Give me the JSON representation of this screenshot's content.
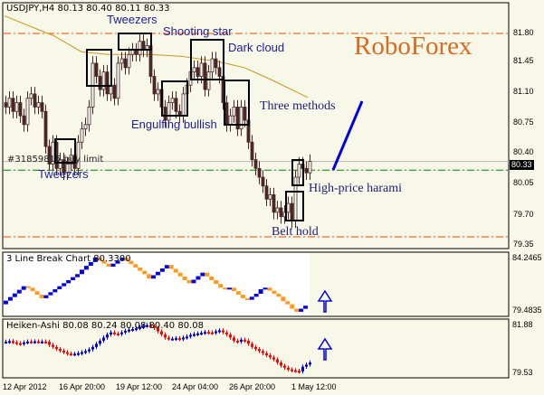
{
  "chart_data": [
    {
      "type": "candlestick",
      "header": "USDJPY,H4  80.13 80.40 80.11 80.33",
      "brand": "RoboForex",
      "ylim": [
        79.3,
        82.1
      ],
      "yticks": [
        "81.80",
        "81.45",
        "81.10",
        "80.75",
        "80.40",
        "80.05",
        "79.70",
        "79.35"
      ],
      "close": [
        80.95,
        81.05,
        80.9,
        81.0,
        80.85,
        80.75,
        81.05,
        81.1,
        80.95,
        81.0,
        80.9,
        80.5,
        80.3,
        80.55,
        80.25,
        80.35,
        80.2,
        80.3,
        80.4,
        80.25,
        80.55,
        80.7,
        80.75,
        80.95,
        81.45,
        81.3,
        81.15,
        81.35,
        81.1,
        81.2,
        81.05,
        81.45,
        81.5,
        81.4,
        81.55,
        81.6,
        81.55,
        81.7,
        81.6,
        81.65,
        81.3,
        81.1,
        81.15,
        80.95,
        80.8,
        81.0,
        81.05,
        80.9,
        80.85,
        81.1,
        81.2,
        81.35,
        81.4,
        81.3,
        81.45,
        81.15,
        81.35,
        81.5,
        81.4,
        81.3,
        81.0,
        80.75,
        80.85,
        80.95,
        80.7,
        80.95,
        80.8,
        80.55,
        80.35,
        80.25,
        80.15,
        80.05,
        79.9,
        79.95,
        79.75,
        79.8,
        79.7,
        79.75,
        79.85,
        79.65,
        80.15,
        80.3,
        80.25,
        80.2,
        80.33
      ],
      "moving_average": [
        81.99,
        81.76,
        81.58,
        81.55,
        81.55,
        81.53,
        81.47,
        81.4,
        81.26,
        81.06
      ],
      "bid": "80.33",
      "order_label": "#31859816 buy limit",
      "levels": {
        "resistance": 81.79,
        "support": 79.47,
        "order": 80.23
      },
      "annotations": {
        "tweezers_top": "Tweezers",
        "shooting_star": "Shooting star",
        "dark_cloud": "Dark cloud",
        "engulfing_bullish": "Engulfing bullish",
        "tweezers_bottom": "Tweezers",
        "three_methods": "Three methods",
        "high_price_harami": "High-price harami",
        "belt_hold": "Belt hold"
      },
      "colors": {
        "candle": "#4a2626",
        "ma": "#c8961e",
        "resistance": "#ff4500",
        "order": "#008000",
        "trend": "#0000e0",
        "annotation": "#1c1c9c",
        "brand": "#d96a1e"
      }
    },
    {
      "type": "line-break",
      "title": "3 Line Break Chart 80.3300",
      "yticks": [
        "84.2465",
        "79.4835"
      ],
      "levels": [
        80.08,
        81.69,
        81.56,
        80.62,
        81.42,
        81.96,
        82.77,
        83.17,
        83.85,
        84.25,
        83.44,
        84.25,
        82.77,
        82.37,
        83.58,
        82.23,
        81.96,
        82.9,
        81.56,
        81.42,
        81.56,
        80.62,
        80.48,
        81.02,
        81.42,
        81.56,
        80.75,
        80.35,
        80.08,
        79.68,
        79.41,
        79.95
      ],
      "colors": {
        "up": "#0000e0",
        "down": "#ff9a1e"
      },
      "signal": "up-arrow"
    },
    {
      "type": "heiken-ashi",
      "title": "Heiken-Ashi 80.08 80.24 80.08 80.40 80.08",
      "yticks": [
        "81.88",
        "79.53"
      ],
      "values": [
        81.05,
        81.08,
        81.03,
        80.98,
        80.95,
        81.02,
        81.06,
        81.05,
        81.07,
        81.05,
        81.06,
        81.05,
        80.9,
        80.8,
        80.7,
        80.62,
        80.55,
        80.48,
        80.46,
        80.47,
        80.5,
        80.55,
        80.6,
        80.68,
        80.8,
        80.95,
        81.1,
        81.25,
        81.4,
        81.5,
        81.45,
        81.42,
        81.5,
        81.58,
        81.63,
        81.66,
        81.7,
        81.75,
        81.82,
        81.85,
        81.8,
        81.72,
        81.55,
        81.4,
        81.25,
        81.2,
        81.2,
        81.22,
        81.18,
        81.25,
        81.3,
        81.38,
        81.42,
        81.45,
        81.48,
        81.52,
        81.5,
        81.48,
        81.55,
        81.6,
        81.5,
        81.4,
        81.25,
        81.1,
        81.05,
        81.15,
        81.1,
        80.95,
        80.8,
        80.7,
        80.6,
        80.5,
        80.4,
        80.3,
        80.2,
        80.05,
        79.9,
        79.8,
        79.72,
        79.68,
        79.65,
        79.62,
        79.85,
        79.95,
        80.05
      ],
      "colors": {
        "up": "#0000e0",
        "down": "#ff0000"
      },
      "signal": "up-arrow"
    }
  ],
  "time_axis": [
    "12 Apr 2012",
    "16 Apr 20:00",
    "19 Apr 12:00",
    "24 Apr 04:00",
    "26 Apr 20:00",
    "1 May 12:00"
  ]
}
